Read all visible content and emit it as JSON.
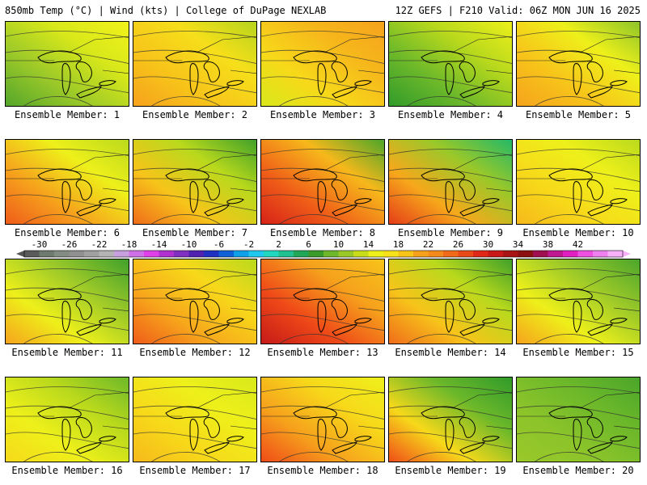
{
  "header": {
    "left": "850mb Temp (°C) | Wind (kts) | College of DuPage NEXLAB",
    "right": "12Z GEFS | F210 Valid: 06Z MON JUN 16 2025"
  },
  "members": [
    {
      "label": "Ensemble Member: 1",
      "colors": [
        "#52a52a",
        "#9ac829",
        "#d8e81a",
        "#f2f21a"
      ]
    },
    {
      "label": "Ensemble Member: 2",
      "colors": [
        "#f6a11c",
        "#f7c41a",
        "#f6df1a",
        "#b5d41c"
      ]
    },
    {
      "label": "Ensemble Member: 3",
      "colors": [
        "#d8e81a",
        "#f7d91a",
        "#f6b81b",
        "#f5a21c"
      ]
    },
    {
      "label": "Ensemble Member: 4",
      "colors": [
        "#2f9a2a",
        "#6cb82a",
        "#b9d91c",
        "#eef01a"
      ]
    },
    {
      "label": "Ensemble Member: 5",
      "colors": [
        "#f5a21c",
        "#f7c41a",
        "#eef01a",
        "#8cc42a"
      ]
    },
    {
      "label": "Ensemble Member: 6",
      "colors": [
        "#ef5a1a",
        "#f6a11c",
        "#eef01a",
        "#b9d91c"
      ]
    },
    {
      "label": "Ensemble Member: 7",
      "colors": [
        "#ef6a1a",
        "#f7c41a",
        "#b9d91c",
        "#3ea02a"
      ]
    },
    {
      "label": "Ensemble Member: 8",
      "colors": [
        "#d62018",
        "#f06018",
        "#f6b81b",
        "#4aa52a"
      ]
    },
    {
      "label": "Ensemble Member: 9",
      "colors": [
        "#e43a18",
        "#f7a81b",
        "#9ac829",
        "#22b868"
      ]
    },
    {
      "label": "Ensemble Member: 10",
      "colors": [
        "#f6b81b",
        "#f7d91a",
        "#eef01a",
        "#b9d91c"
      ]
    },
    {
      "label": "Ensemble Member: 11",
      "colors": [
        "#f6a11c",
        "#eef01a",
        "#9ac829",
        "#3ea02a"
      ]
    },
    {
      "label": "Ensemble Member: 12",
      "colors": [
        "#ef5a1a",
        "#f7a81b",
        "#f7d91a",
        "#b9d91c"
      ]
    },
    {
      "label": "Ensemble Member: 13",
      "colors": [
        "#c41818",
        "#ef4a18",
        "#f6a11c",
        "#f7c41a"
      ]
    },
    {
      "label": "Ensemble Member: 14",
      "colors": [
        "#ef6a1a",
        "#f7c41a",
        "#b9d91c",
        "#3ea02a"
      ]
    },
    {
      "label": "Ensemble Member: 15",
      "colors": [
        "#f6a11c",
        "#eef01a",
        "#9ac829",
        "#4aa52a"
      ]
    },
    {
      "label": "Ensemble Member: 16",
      "colors": [
        "#f7d91a",
        "#eef01a",
        "#b9d91c",
        "#6cb82a"
      ]
    },
    {
      "label": "Ensemble Member: 17",
      "colors": [
        "#f6b81b",
        "#f7d91a",
        "#eef01a",
        "#d8e81a"
      ]
    },
    {
      "label": "Ensemble Member: 18",
      "colors": [
        "#ef4a18",
        "#f6a11c",
        "#f7d91a",
        "#eef01a"
      ]
    },
    {
      "label": "Ensemble Member: 19",
      "colors": [
        "#ef4a18",
        "#f7d91a",
        "#6cb82a",
        "#2f9a2a"
      ]
    },
    {
      "label": "Ensemble Member: 20",
      "colors": [
        "#9ac829",
        "#8cc42a",
        "#6cb82a",
        "#4aa52a"
      ]
    }
  ],
  "colorbar": {
    "labels": [
      "-30",
      "-26",
      "-22",
      "-18",
      "-14",
      "-10",
      "-6",
      "-2",
      "2",
      "6",
      "10",
      "14",
      "18",
      "22",
      "26",
      "30",
      "34",
      "38",
      "42"
    ],
    "colors": [
      "#5a5a5a",
      "#6e7a6e",
      "#828c82",
      "#909090",
      "#a0a0a0",
      "#b4b4b4",
      "#c8a0e0",
      "#d070e8",
      "#e040e8",
      "#b030d0",
      "#8030c0",
      "#5020b0",
      "#2030c0",
      "#1060d8",
      "#10a0e8",
      "#20c8f0",
      "#20d8c0",
      "#20c090",
      "#20a858",
      "#3a9a2a",
      "#6cb82a",
      "#9ac829",
      "#c8dc1c",
      "#eef01a",
      "#f7e11a",
      "#f7c41a",
      "#f6a11c",
      "#f58a1c",
      "#f06a1a",
      "#ea4a18",
      "#e02818",
      "#c81818",
      "#a81414",
      "#8c1010",
      "#a01050",
      "#c01890",
      "#e020c0",
      "#f050e0",
      "#f080f0",
      "#f8b0f8"
    ]
  }
}
